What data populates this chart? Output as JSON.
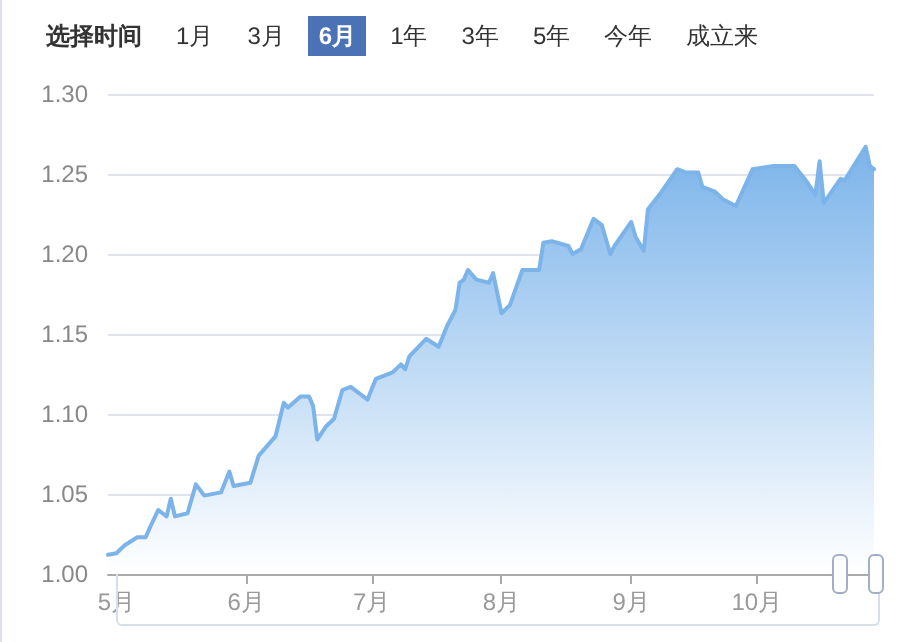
{
  "chart_data": {
    "type": "area",
    "title": "选择时间",
    "annotations": [
      "1月",
      "3月",
      "6月",
      "1年",
      "3年",
      "5年",
      "今年",
      "成立来"
    ],
    "x": [
      "--04-29",
      "--05-01",
      "--05-03",
      "--05-06",
      "--05-08",
      "--05-09",
      "--05-11",
      "--05-13",
      "--05-14",
      "--05-15",
      "--05-18",
      "--05-20",
      "--05-22",
      "--05-26",
      "--05-28",
      "--05-29",
      "--06-02",
      "--06-04",
      "--06-08",
      "--06-10",
      "--06-11",
      "--06-14",
      "--06-16",
      "--06-17",
      "--06-18",
      "--06-20",
      "--06-22",
      "--06-24",
      "--06-26",
      "--06-30",
      "--07-02",
      "--07-06",
      "--07-08",
      "--07-09",
      "--07-10",
      "--07-14",
      "--07-17",
      "--07-19",
      "--07-21",
      "--07-22",
      "--07-23",
      "--07-24",
      "--07-26",
      "--07-29",
      "--07-30",
      "--08-01",
      "--08-03",
      "--08-06",
      "--08-10",
      "--08-11",
      "--08-13",
      "--08-17",
      "--08-18",
      "--08-20",
      "--08-23",
      "--08-25",
      "--08-27",
      "--08-28",
      "--09-01",
      "--09-02",
      "--09-04",
      "--09-05",
      "--09-08",
      "--09-12",
      "--09-14",
      "--09-17",
      "--09-18",
      "--09-21",
      "--09-23",
      "--09-26",
      "--09-30",
      "--10-05",
      "--10-10",
      "--10-13",
      "--10-15",
      "--10-16",
      "--10-17",
      "--10-21",
      "--10-22",
      "--10-27",
      "--10-28",
      "--10-29"
    ],
    "series": [
      {
        "color": "#7cb4ea",
        "values": [
          1.012,
          1.013,
          1.018,
          1.023,
          1.023,
          1.029,
          1.04,
          1.036,
          1.047,
          1.036,
          1.038,
          1.056,
          1.049,
          1.051,
          1.064,
          1.055,
          1.057,
          1.074,
          1.086,
          1.107,
          1.104,
          1.111,
          1.111,
          1.105,
          1.084,
          1.092,
          1.097,
          1.115,
          1.117,
          1.109,
          1.122,
          1.126,
          1.131,
          1.128,
          1.136,
          1.147,
          1.142,
          1.155,
          1.165,
          1.182,
          1.184,
          1.19,
          1.184,
          1.182,
          1.188,
          1.163,
          1.168,
          1.19,
          1.19,
          1.207,
          1.208,
          1.205,
          1.2,
          1.203,
          1.222,
          1.218,
          1.2,
          1.205,
          1.22,
          1.211,
          1.202,
          1.228,
          1.238,
          1.253,
          1.251,
          1.251,
          1.242,
          1.239,
          1.234,
          1.23,
          1.253,
          1.255,
          1.255,
          1.245,
          1.237,
          1.258,
          1.232,
          1.247,
          1.246,
          1.267,
          1.255,
          1.253
        ]
      }
    ],
    "xlim": [
      "--04-29",
      "--10-29"
    ],
    "xticks": [
      {
        "value": "--05-01",
        "label": "5月"
      },
      {
        "value": "--06-01",
        "label": "6月"
      },
      {
        "value": "--07-01",
        "label": "7月"
      },
      {
        "value": "--08-01",
        "label": "8月"
      },
      {
        "value": "--09-01",
        "label": "9月"
      },
      {
        "value": "--10-01",
        "label": "10月"
      }
    ],
    "ylim": [
      1,
      1.3
    ],
    "yticks": [
      {
        "value": 1,
        "label": "1.00"
      },
      {
        "value": 1.05,
        "label": "1.05"
      },
      {
        "value": 1.1,
        "label": "1.10"
      },
      {
        "value": 1.15,
        "label": "1.15"
      },
      {
        "value": 1.2,
        "label": "1.20"
      },
      {
        "value": 1.25,
        "label": "1.25"
      },
      {
        "value": 1.3,
        "label": "1.30"
      }
    ],
    "grid": "y",
    "marker": "none",
    "line_style": "solid"
  }
}
